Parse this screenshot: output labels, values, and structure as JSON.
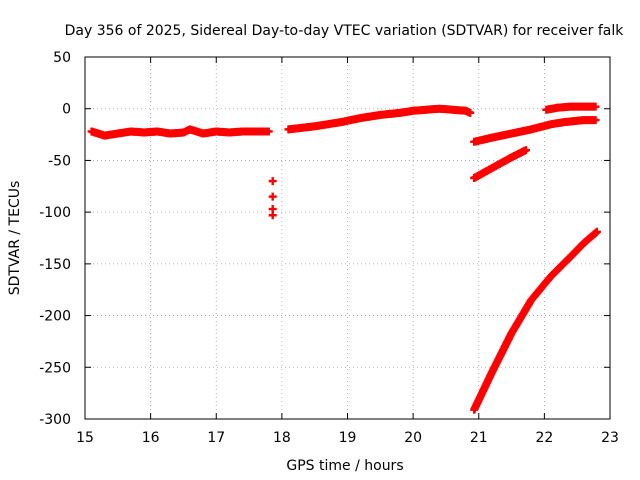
{
  "chart_data": {
    "type": "scatter",
    "title": "Day 356 of 2025, Sidereal Day-to-day VTEC variation (SDTVAR) for receiver falk",
    "xlabel": "GPS time / hours",
    "ylabel": "SDTVAR / TECUs",
    "xlim": [
      15,
      23
    ],
    "ylim": [
      -300,
      50
    ],
    "x_ticks": [
      15,
      16,
      17,
      18,
      19,
      20,
      21,
      22,
      23
    ],
    "y_ticks": [
      50,
      0,
      -50,
      -100,
      -150,
      -200,
      -250,
      -300
    ],
    "grid": true,
    "legend": "none",
    "marker_color": "#ff0000",
    "series": [
      {
        "points": [
          [
            15.1,
            -22
          ],
          [
            15.3,
            -26
          ],
          [
            15.5,
            -24
          ],
          [
            15.7,
            -22
          ],
          [
            15.9,
            -23
          ],
          [
            16.1,
            -22
          ],
          [
            16.3,
            -24
          ],
          [
            16.5,
            -23
          ],
          [
            16.6,
            -20
          ],
          [
            16.8,
            -24
          ],
          [
            17.0,
            -22
          ],
          [
            17.2,
            -23
          ],
          [
            17.4,
            -22
          ],
          [
            17.6,
            -22
          ],
          [
            17.8,
            -22
          ]
        ]
      },
      {
        "points": [
          [
            17.86,
            -70
          ],
          [
            17.86,
            -85
          ],
          [
            17.86,
            -97
          ],
          [
            17.86,
            -103
          ]
        ]
      },
      {
        "points": [
          [
            18.1,
            -20
          ],
          [
            18.5,
            -17
          ],
          [
            18.9,
            -13
          ],
          [
            19.2,
            -9
          ],
          [
            19.5,
            -6
          ],
          [
            19.8,
            -4
          ],
          [
            20.0,
            -2
          ],
          [
            20.2,
            -1
          ],
          [
            20.4,
            0
          ],
          [
            20.6,
            -1
          ],
          [
            20.8,
            -2
          ],
          [
            20.87,
            -4
          ]
        ]
      },
      {
        "points": [
          [
            20.93,
            -32
          ],
          [
            21.2,
            -28
          ],
          [
            21.5,
            -24
          ],
          [
            21.8,
            -20
          ],
          [
            22.1,
            -15
          ],
          [
            22.3,
            -13
          ],
          [
            22.6,
            -11
          ],
          [
            22.78,
            -11
          ]
        ]
      },
      {
        "points": [
          [
            22.03,
            -1
          ],
          [
            22.2,
            1
          ],
          [
            22.4,
            2
          ],
          [
            22.6,
            2
          ],
          [
            22.78,
            2
          ]
        ]
      },
      {
        "points": [
          [
            20.93,
            -67
          ],
          [
            21.1,
            -61
          ],
          [
            21.3,
            -54
          ],
          [
            21.5,
            -47
          ],
          [
            21.72,
            -40
          ]
        ]
      },
      {
        "points": [
          [
            20.93,
            -291
          ],
          [
            21.2,
            -255
          ],
          [
            21.5,
            -217
          ],
          [
            21.8,
            -185
          ],
          [
            22.1,
            -162
          ],
          [
            22.4,
            -143
          ],
          [
            22.6,
            -130
          ],
          [
            22.8,
            -119
          ]
        ]
      }
    ]
  }
}
